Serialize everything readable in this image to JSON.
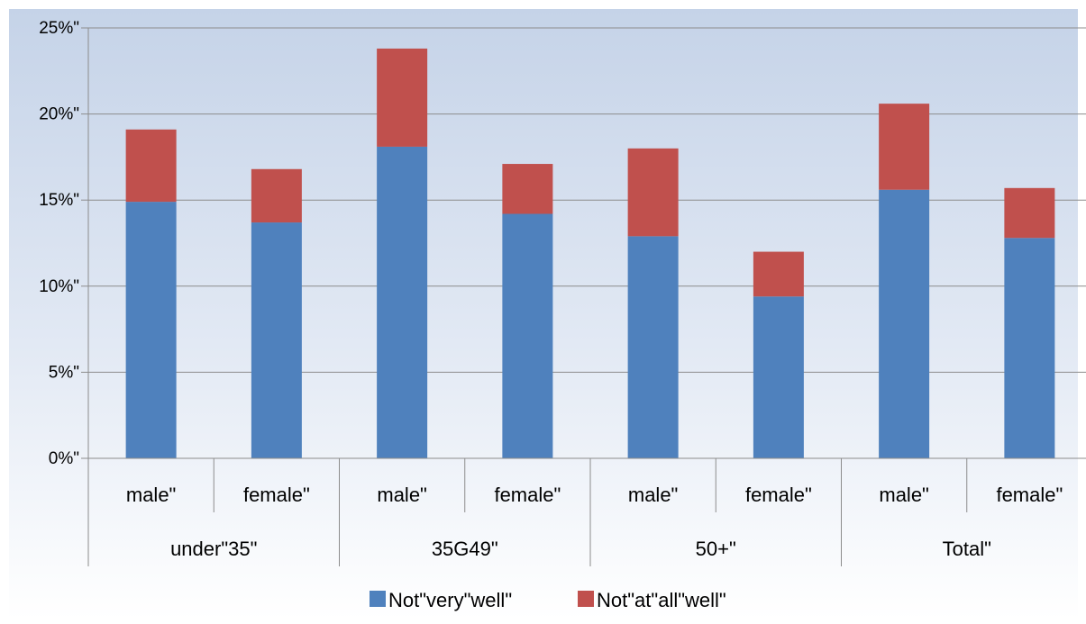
{
  "chart_data": {
    "type": "bar",
    "stacked": true,
    "title": "",
    "xlabel": "",
    "ylabel": "",
    "ylim": [
      0,
      25
    ],
    "y_ticks": [
      0,
      5,
      10,
      15,
      20,
      25
    ],
    "y_tick_labels": [
      "0%\"",
      "5%\"",
      "10%\"",
      "15%\"",
      "20%\"",
      "25%\""
    ],
    "grid": true,
    "legend_position": "bottom",
    "groups": [
      "under\"35\"",
      "35G49\"",
      "50+\"",
      "Total\""
    ],
    "categories": [
      "male\"",
      "female\"",
      "male\"",
      "female\"",
      "male\"",
      "female\"",
      "male\"",
      "female\""
    ],
    "series": [
      {
        "name": "Not\"very\"well\"",
        "color": "#4f81bd",
        "values": [
          14.9,
          13.7,
          18.1,
          14.2,
          12.9,
          9.4,
          15.6,
          12.8
        ]
      },
      {
        "name": "Not\"at\"all\"well\"",
        "color": "#c0504d",
        "values": [
          4.2,
          3.1,
          5.7,
          2.9,
          5.1,
          2.6,
          5.0,
          2.9
        ]
      }
    ]
  }
}
